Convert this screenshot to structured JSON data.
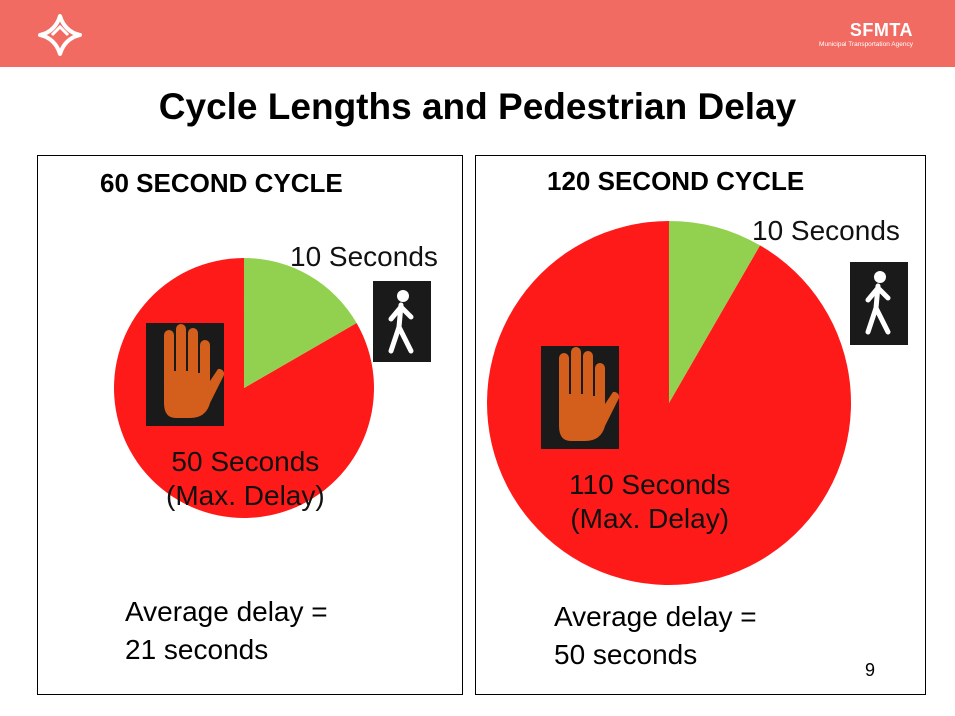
{
  "header": {
    "org_name": "SFMTA",
    "org_subtitle": "Municipal Transportation Agency"
  },
  "slide": {
    "title": "Cycle Lengths and Pedestrian Delay",
    "page_number": "9"
  },
  "colors": {
    "banner": "#f26b63",
    "dont_walk": "#ff1a1a",
    "walk": "#92d050",
    "hand": "#d45e1c"
  },
  "chart_data": [
    {
      "type": "pie",
      "title": "60 SECOND CYCLE",
      "cycle_seconds": 60,
      "slices": [
        {
          "name": "walk",
          "value": 10,
          "label": "10 Seconds",
          "color": "#92d050"
        },
        {
          "name": "dont-walk",
          "value": 50,
          "label_line1": "50 Seconds",
          "label_line2": "(Max. Delay)",
          "color": "#ff1a1a"
        }
      ],
      "average_delay_line1": "Average delay =",
      "average_delay_line2": "21 seconds"
    },
    {
      "type": "pie",
      "title": "120 SECOND CYCLE",
      "cycle_seconds": 120,
      "slices": [
        {
          "name": "walk",
          "value": 10,
          "label": "10 Seconds",
          "color": "#92d050"
        },
        {
          "name": "dont-walk",
          "value": 110,
          "label_line1": "110 Seconds",
          "label_line2": "(Max. Delay)",
          "color": "#ff1a1a"
        }
      ],
      "average_delay_line1": "Average delay =",
      "average_delay_line2": "50 seconds"
    }
  ]
}
